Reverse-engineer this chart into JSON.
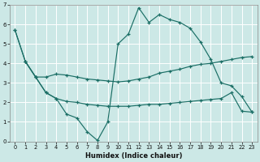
{
  "xlabel": "Humidex (Indice chaleur)",
  "xlim": [
    -0.5,
    23.5
  ],
  "ylim": [
    0,
    7
  ],
  "xticks": [
    0,
    1,
    2,
    3,
    4,
    5,
    6,
    7,
    8,
    9,
    10,
    11,
    12,
    13,
    14,
    15,
    16,
    17,
    18,
    19,
    20,
    21,
    22,
    23
  ],
  "yticks": [
    0,
    1,
    2,
    3,
    4,
    5,
    6,
    7
  ],
  "bg_color": "#cce8e6",
  "grid_color": "#ffffff",
  "line_color": "#1a6e65",
  "s1_x": [
    0,
    1,
    2,
    3,
    4,
    5,
    6,
    7,
    8,
    9,
    10,
    11,
    12,
    13,
    14,
    15,
    16,
    17,
    18,
    19,
    20,
    21,
    22,
    23
  ],
  "s1_y": [
    5.7,
    4.1,
    3.3,
    3.3,
    3.45,
    3.4,
    3.3,
    3.2,
    3.15,
    3.1,
    3.05,
    3.1,
    3.2,
    3.3,
    3.5,
    3.6,
    3.7,
    3.85,
    3.95,
    4.0,
    4.1,
    4.2,
    4.3,
    4.35
  ],
  "s2_x": [
    0,
    1,
    2,
    3,
    4,
    5,
    6,
    7,
    8,
    9,
    10,
    11,
    12,
    13,
    14,
    15,
    16,
    17,
    18,
    19,
    20,
    21,
    22,
    23
  ],
  "s2_y": [
    5.7,
    4.1,
    3.3,
    2.5,
    2.2,
    1.4,
    1.2,
    0.5,
    0.05,
    1.0,
    5.0,
    5.5,
    6.85,
    6.1,
    6.5,
    6.25,
    6.1,
    5.8,
    5.1,
    4.2,
    3.0,
    2.85,
    2.3,
    1.5
  ],
  "s3_x": [
    1,
    2,
    3,
    4,
    5,
    6,
    7,
    8,
    9,
    10,
    11,
    12,
    13,
    14,
    15,
    16,
    17,
    18,
    19,
    20,
    21,
    22,
    23
  ],
  "s3_y": [
    4.1,
    3.3,
    2.5,
    2.2,
    2.05,
    2.0,
    1.9,
    1.85,
    1.8,
    1.8,
    1.8,
    1.85,
    1.9,
    1.9,
    1.95,
    2.0,
    2.05,
    2.1,
    2.15,
    2.2,
    2.5,
    1.55,
    1.5
  ]
}
